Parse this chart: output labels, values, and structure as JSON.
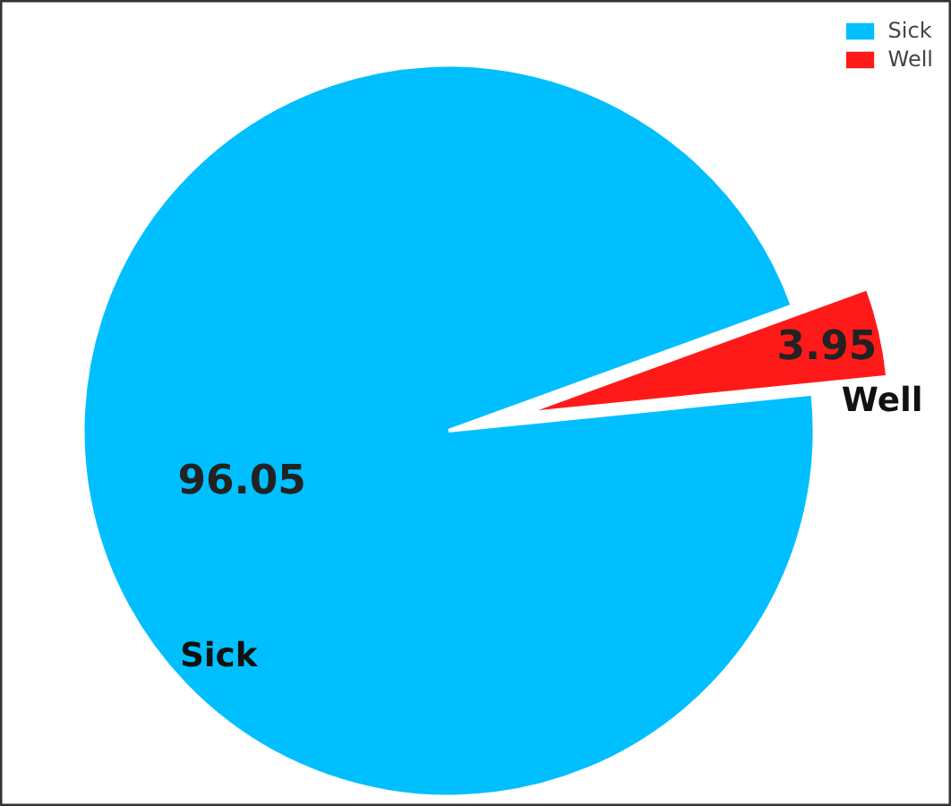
{
  "chart_data": {
    "type": "pie",
    "categories": [
      "Sick",
      "Well"
    ],
    "values": [
      96.05,
      3.95
    ],
    "colors": [
      "#00bfff",
      "#ff1a1a"
    ],
    "data_labels": true,
    "legend": "top right"
  }
}
